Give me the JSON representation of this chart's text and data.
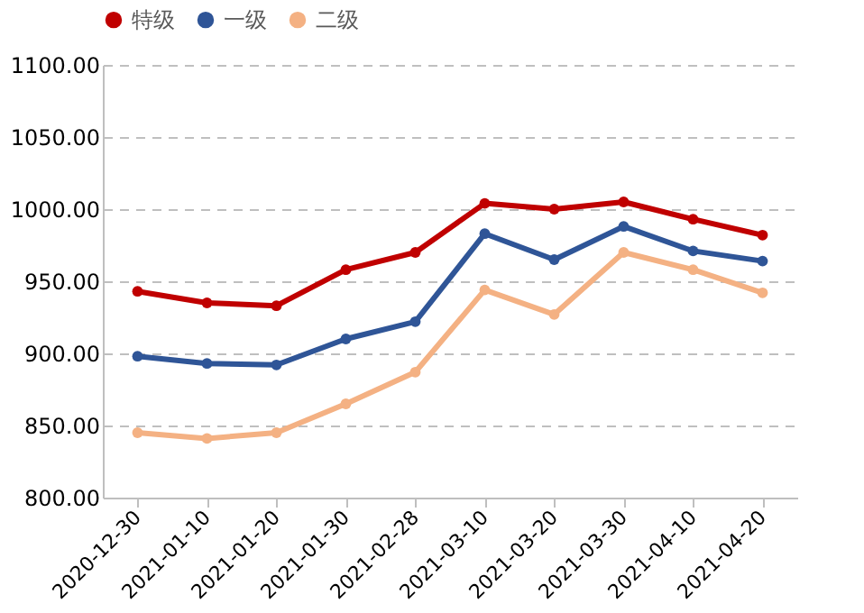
{
  "chart_data": {
    "type": "line",
    "categories": [
      "2020-12-30",
      "2021-01-10",
      "2021-01-20",
      "2021-01-30",
      "2021-02-28",
      "2021-03-10",
      "2021-03-20",
      "2021-03-30",
      "2021-04-10",
      "2021-04-20"
    ],
    "series": [
      {
        "name": "特级",
        "color": "#c00000",
        "values": [
          943,
          935,
          933,
          958,
          970,
          1004,
          1000,
          1005,
          993,
          982
        ]
      },
      {
        "name": "一级",
        "color": "#2f5597",
        "values": [
          898,
          893,
          892,
          910,
          922,
          983,
          965,
          988,
          971,
          964
        ]
      },
      {
        "name": "二级",
        "color": "#f4b183",
        "values": [
          845,
          841,
          845,
          865,
          887,
          944,
          927,
          970,
          958,
          942
        ]
      }
    ],
    "ylim": [
      800,
      1100
    ],
    "yticks": [
      {
        "value": 800,
        "label": "800.00"
      },
      {
        "value": 850,
        "label": "850.00"
      },
      {
        "value": 900,
        "label": "900.00"
      },
      {
        "value": 950,
        "label": "950.00"
      },
      {
        "value": 1000,
        "label": "1000.00"
      },
      {
        "value": 1050,
        "label": "1050.00"
      },
      {
        "value": 1100,
        "label": "1100.00"
      }
    ],
    "grid": "y",
    "legend": "top",
    "marker": "circle",
    "line_style": "solid"
  }
}
